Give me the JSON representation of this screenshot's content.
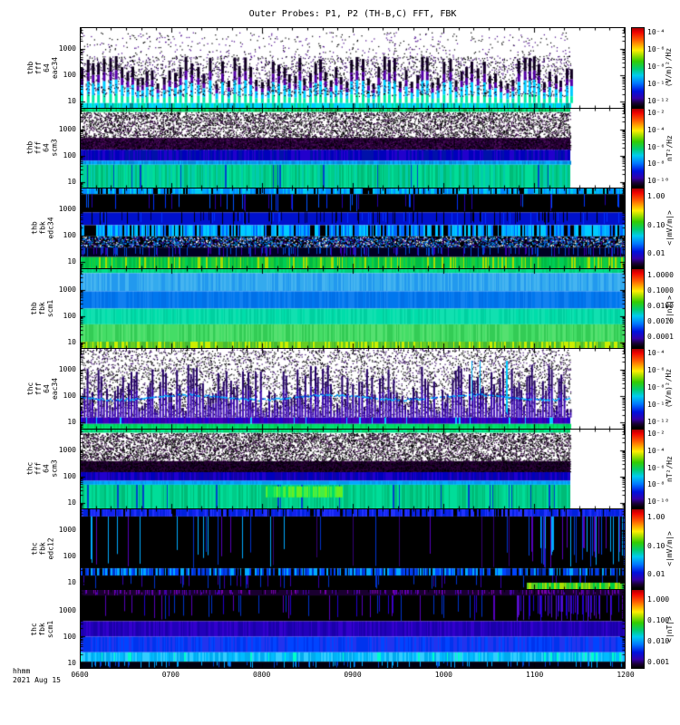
{
  "title": "Outer Probes: P1, P2 (TH-B,C) FFT, FBK",
  "freq_ticks": [
    "1000",
    "100",
    "10"
  ],
  "bottom_axis": {
    "unit_label": "hhmm",
    "date_label": "2021 Aug 15",
    "tick_labels": [
      "0600",
      "0700",
      "0800",
      "0900",
      "1000",
      "1100",
      "1200"
    ]
  },
  "chart_data": {
    "type": "heatmap",
    "subtype": "multi-panel time-frequency spectrogram",
    "title": "Outer Probes: P1, P2 (TH-B,C) FFT, FBK",
    "x_axis": {
      "label": "hhmm",
      "date": "2021 Aug 15",
      "start": "0600",
      "end": "1200",
      "ticks": [
        "0600",
        "0700",
        "0800",
        "0900",
        "1000",
        "1100",
        "1200"
      ]
    },
    "y_axis": {
      "scale": "log",
      "range": [
        6,
        6000
      ],
      "ticks": [
        10,
        100,
        1000
      ]
    },
    "colormap": "rainbow, red=high black=low",
    "panels": [
      {
        "name": "thb fff 64 eac34",
        "label_multiline": "thb\nfff\n64\neac34",
        "cb_unit": "(V/m)²/Hz",
        "cb_ticks": [
          "10⁻⁴",
          "10⁻⁶",
          "10⁻⁸",
          "10⁻¹⁰",
          "10⁻¹²"
        ],
        "data_end": 0.9,
        "seed": 11,
        "bands": [
          {
            "style": "speckle",
            "y0": 0.05,
            "y1": 0.6,
            "density": 0.03,
            "colors": [
              "#000000",
              "#440088"
            ]
          },
          {
            "style": "spikes",
            "y0": 0.18,
            "y1": 0.94,
            "period": 6,
            "w": 3,
            "hmin": 0.3,
            "hmax": 0.8,
            "colors": [
              "#110022",
              "#5500aa",
              "#00ccff",
              "#00eeaa"
            ],
            "weights": [
              0.3,
              0.2,
              0.3,
              0.2
            ]
          },
          {
            "style": "speckle",
            "y0": 0.35,
            "y1": 0.85,
            "density": 0.1,
            "colors": [
              "#000000",
              "#330066"
            ]
          },
          {
            "style": "vstreaks",
            "y0": 0.94,
            "y1": 1,
            "colors": [
              "#00e6e6",
              "#00ccff",
              "#00d9a0"
            ],
            "accent": "#008888",
            "accent_density": 0.08
          }
        ]
      },
      {
        "name": "thb fff 64 scm3",
        "label_multiline": "thb\nfff\n64\nscm3",
        "cb_unit": "nT²/Hz",
        "cb_ticks": [
          "10⁻²",
          "10⁻⁴",
          "10⁻⁶",
          "10⁻⁸",
          "10⁻¹⁰"
        ],
        "data_end": 0.9,
        "seed": 22,
        "bands": [
          {
            "style": "vstreaks",
            "y0": 0,
            "y1": 0.04,
            "colors": [
              "#00cc66",
              "#00dd88",
              "#009944"
            ]
          },
          {
            "style": "speckle",
            "y0": 0.04,
            "y1": 0.37,
            "density": 0.4,
            "colors": [
              "#000000",
              "#000000",
              "#330044"
            ]
          },
          {
            "style": "speckle",
            "y0": 0.37,
            "y1": 0.52,
            "bg": "#2a0038",
            "density": 0.5,
            "colors": [
              "#000000",
              "#110022",
              "#551166"
            ]
          },
          {
            "style": "vstreaks",
            "y0": 0.52,
            "y1": 0.66,
            "colors": [
              "#0000bb",
              "#0011aa",
              "#2200cc"
            ]
          },
          {
            "style": "vstreaks",
            "y0": 0.66,
            "y1": 0.71,
            "colors": [
              "#00aaff",
              "#0099ee",
              "#0088dd"
            ]
          },
          {
            "style": "vstreaks",
            "y0": 0.71,
            "y1": 1,
            "colors": [
              "#00cc88",
              "#00dd99",
              "#00bb77",
              "#00ccaa"
            ],
            "accent": "#0044cc",
            "accent_density": 0.05
          }
        ]
      },
      {
        "name": "thb fbk edc34",
        "label_multiline": "thb\nfbk\nedc34",
        "cb_unit": "<|mV/m|>",
        "cb_ticks": [
          "1.00",
          "0.10",
          "0.01"
        ],
        "data_end": 1,
        "seed": 33,
        "bands": [
          {
            "style": "vstreaks",
            "y0": 0,
            "y1": 0.07,
            "colors": [
              "#00ccee",
              "#00aaff",
              "#0088ff"
            ],
            "accent": "#000000",
            "accent_density": 0.2
          },
          {
            "style": "vcols",
            "y0": 0.07,
            "y1": 0.3,
            "bg": "#000000",
            "density": 0.07,
            "colors": [
              "#0033ff",
              "#0055ff",
              "#2200aa"
            ]
          },
          {
            "style": "vcols",
            "y0": 0.3,
            "y1": 0.46,
            "bg": "#0011cc",
            "density": 0.18,
            "colors": [
              "#000000",
              "#0033ff",
              "#000044"
            ]
          },
          {
            "style": "vstreaks",
            "y0": 0.46,
            "y1": 0.6,
            "colors": [
              "#00aaff",
              "#0066ff",
              "#00ccff"
            ],
            "accent": "#000000",
            "accent_density": 0.25
          },
          {
            "style": "speckle",
            "y0": 0.6,
            "y1": 0.74,
            "bg": "#000000",
            "density": 0.45,
            "colors": [
              "#ffffff",
              "#0066ff",
              "#4400aa",
              "#00aaff"
            ]
          },
          {
            "style": "vcols",
            "y0": 0.74,
            "y1": 0.86,
            "bg": "#000022",
            "density": 0.25,
            "colors": [
              "#3300aa",
              "#0044cc"
            ]
          },
          {
            "style": "vstreaks",
            "y0": 0.86,
            "y1": 1,
            "colors": [
              "#00bb44",
              "#00cc55",
              "#22cc33"
            ],
            "accent": "#aadd00",
            "accent_density": 0.15
          }
        ]
      },
      {
        "name": "thb fbk scm1",
        "label_multiline": "thb\nfbk\nscm1",
        "cb_unit": "<|nT|>",
        "cb_ticks": [
          "1.0000",
          "0.1000",
          "0.0100",
          "0.0010",
          "0.0001"
        ],
        "data_end": 1,
        "seed": 44,
        "bands": [
          {
            "style": "vstreaks",
            "y0": 0,
            "y1": 0.05,
            "colors": [
              "#00dd88",
              "#00cc77"
            ]
          },
          {
            "style": "vstreaks",
            "y0": 0.05,
            "y1": 0.28,
            "colors": [
              "#33aaee",
              "#2299ee",
              "#44b4f0"
            ]
          },
          {
            "style": "vstreaks",
            "y0": 0.28,
            "y1": 0.5,
            "colors": [
              "#0077ee",
              "#0070e8",
              "#1180f0"
            ]
          },
          {
            "style": "vstreaks",
            "y0": 0.5,
            "y1": 0.7,
            "colors": [
              "#00ddaa",
              "#00d0a0",
              "#11e0b0"
            ]
          },
          {
            "style": "vstreaks",
            "y0": 0.7,
            "y1": 0.92,
            "colors": [
              "#44dd66",
              "#33cc55",
              "#55e070"
            ]
          },
          {
            "style": "vstreaks",
            "y0": 0.92,
            "y1": 1,
            "colors": [
              "#66cc22",
              "#44bb33"
            ],
            "accent": "#ccee00",
            "accent_density": 0.3
          }
        ]
      },
      {
        "name": "thc fff 64 eac34",
        "label_multiline": "thc\nfff\n64\neac34",
        "cb_unit": "(V/m)²/Hz",
        "cb_ticks": [
          "10⁻⁴",
          "10⁻⁶",
          "10⁻⁸",
          "10⁻¹⁰",
          "10⁻¹²"
        ],
        "data_end": 0.9,
        "seed": 55,
        "bands": [
          {
            "style": "speckle",
            "y0": 0,
            "y1": 0.88,
            "density": 0.15,
            "colors": [
              "#000000",
              "#000000",
              "#330066"
            ]
          },
          {
            "style": "spikes",
            "y0": 0.08,
            "y1": 0.86,
            "period": 3,
            "w": 2,
            "hmin": 0.1,
            "hmax": 0.85,
            "colors": [
              "#220066",
              "#3300aa",
              "#4411bb"
            ],
            "weights": [
              0.4,
              0.35,
              0.25
            ]
          },
          {
            "style": "vcols",
            "y0": 0.15,
            "y1": 0.85,
            "x0": 0.7,
            "x1": 0.8,
            "density": 0.15,
            "colors": [
              "#00ccff",
              "#0099ff",
              "#00aaee"
            ]
          },
          {
            "style": "hline",
            "y": 0.6,
            "amp": 0.03,
            "colors": [
              "#00aaff",
              "#0033cc"
            ]
          },
          {
            "style": "vstreaks",
            "y0": 0.86,
            "y1": 0.94,
            "colors": [
              "#3300aa",
              "#2200cc",
              "#4400bb"
            ],
            "accent": "#00ccff",
            "accent_density": 0.05
          },
          {
            "style": "vstreaks",
            "y0": 0.94,
            "y1": 1,
            "colors": [
              "#00dd66",
              "#00cc55",
              "#00e070"
            ]
          }
        ]
      },
      {
        "name": "thc fff 64 scm3",
        "label_multiline": "thc\nfff\n64\nscm3",
        "cb_unit": "nT²/Hz",
        "cb_ticks": [
          "10⁻²",
          "10⁻⁴",
          "10⁻⁶",
          "10⁻⁸",
          "10⁻¹⁰"
        ],
        "data_end": 0.9,
        "seed": 66,
        "bands": [
          {
            "style": "vstreaks",
            "y0": 0,
            "y1": 0.04,
            "colors": [
              "#00cc66",
              "#00dd88"
            ]
          },
          {
            "style": "speckle",
            "y0": 0.04,
            "y1": 0.4,
            "density": 0.45,
            "colors": [
              "#000000",
              "#000000",
              "#330044"
            ]
          },
          {
            "style": "speckle",
            "y0": 0.4,
            "y1": 0.54,
            "bg": "#2a0038",
            "density": 0.5,
            "colors": [
              "#000000",
              "#110022"
            ]
          },
          {
            "style": "vstreaks",
            "y0": 0.54,
            "y1": 0.65,
            "colors": [
              "#0000bb",
              "#1100aa",
              "#2200cc"
            ]
          },
          {
            "style": "vstreaks",
            "y0": 0.65,
            "y1": 0.7,
            "colors": [
              "#00aaff",
              "#0099ee"
            ]
          },
          {
            "style": "vstreaks",
            "y0": 0.7,
            "y1": 1,
            "colors": [
              "#00cc88",
              "#00bb77",
              "#00dd99"
            ],
            "accent": "#0044cc",
            "accent_density": 0.05
          },
          {
            "style": "vstreaks",
            "y0": 0.72,
            "y1": 0.86,
            "x0": 0.34,
            "x1": 0.48,
            "colors": [
              "#44ee44",
              "#66ee22",
              "#00dd66"
            ]
          }
        ]
      },
      {
        "name": "thc fbk edc12",
        "label_multiline": "thc\nfbk\nedc12",
        "cb_unit": "<|mV/m|>",
        "cb_ticks": [
          "1.00",
          "0.10",
          "0.01"
        ],
        "data_end": 1,
        "seed": 77,
        "bands": [
          {
            "style": "vstreaks",
            "y0": 0,
            "y1": 0.09,
            "colors": [
              "#2233ff",
              "#1122ee",
              "#0022dd"
            ],
            "accent": "#000000",
            "accent_density": 0.15
          },
          {
            "style": "vcols",
            "y0": 0.09,
            "y1": 0.74,
            "bg": "#000000",
            "density": 0.06,
            "colors": [
              "#5500bb",
              "#0033cc",
              "#00aaff",
              "#330077"
            ]
          },
          {
            "style": "vcols",
            "y0": 0.09,
            "y1": 0.74,
            "x0": 0.82,
            "x1": 1,
            "density": 0.3,
            "colors": [
              "#5500bb",
              "#0044dd",
              "#00aaff"
            ]
          },
          {
            "style": "vstreaks",
            "y0": 0.74,
            "y1": 0.83,
            "colors": [
              "#0044ff",
              "#00aaff",
              "#000000",
              "#0033cc"
            ]
          },
          {
            "style": "vcols",
            "y0": 0.83,
            "y1": 1,
            "bg": "#000000",
            "density": 0.08,
            "colors": [
              "#3300aa",
              "#0033cc"
            ]
          },
          {
            "style": "vstreaks",
            "y0": 0.92,
            "y1": 1,
            "x0": 0.82,
            "x1": 1,
            "colors": [
              "#aadd00",
              "#55cc22",
              "#00cc44"
            ]
          }
        ]
      },
      {
        "name": "thc fbk scm1",
        "label_multiline": "thc\nfbk\nscm1",
        "cb_unit": "<|nT|>",
        "cb_ticks": [
          "1.000",
          "0.100",
          "0.010",
          "0.001"
        ],
        "data_end": 1,
        "seed": 88,
        "bands": [
          {
            "style": "vcols",
            "y0": 0,
            "y1": 0.07,
            "bg": "#1a0030",
            "density": 0.3,
            "colors": [
              "#7700aa",
              "#4400aa"
            ]
          },
          {
            "style": "vcols",
            "y0": 0.07,
            "y1": 0.4,
            "bg": "#000000",
            "density": 0.09,
            "colors": [
              "#2200cc",
              "#5500bb",
              "#0033cc"
            ]
          },
          {
            "style": "vcols",
            "y0": 0.07,
            "y1": 0.4,
            "x0": 0.8,
            "x1": 1,
            "density": 0.35,
            "colors": [
              "#2200cc",
              "#5511cc"
            ]
          },
          {
            "style": "vstreaks",
            "y0": 0.4,
            "y1": 0.6,
            "colors": [
              "#2200bb",
              "#3300cc",
              "#1a00aa"
            ]
          },
          {
            "style": "vstreaks",
            "y0": 0.6,
            "y1": 0.8,
            "colors": [
              "#0033ee",
              "#0044ff",
              "#2233ee"
            ]
          },
          {
            "style": "vstreaks",
            "y0": 0.8,
            "y1": 0.92,
            "colors": [
              "#00bbff",
              "#00aaee",
              "#33ccff"
            ],
            "accent": "#00ffcc",
            "accent_density": 0.1
          },
          {
            "style": "vcols",
            "y0": 0.92,
            "y1": 1,
            "bg": "#000010",
            "density": 0.15,
            "colors": [
              "#00aaff",
              "#0044cc"
            ]
          }
        ]
      }
    ]
  }
}
